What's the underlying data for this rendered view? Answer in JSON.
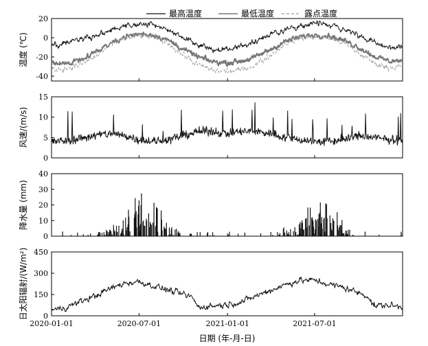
{
  "chart_data": [
    {
      "type": "line",
      "panel": "temperature",
      "ylabel": "温度 (℃)",
      "ylim": [
        -45,
        20
      ],
      "yticks": [
        20,
        0,
        -20,
        -40
      ],
      "legend_placement": "top-right",
      "series": [
        {
          "name": "最高温度",
          "color": "#111111",
          "style": "solid",
          "x": [
            "2020-01-01",
            "2020-02-01",
            "2020-03-01",
            "2020-04-01",
            "2020-05-01",
            "2020-06-01",
            "2020-07-01",
            "2020-08-01",
            "2020-09-01",
            "2020-10-01",
            "2020-11-01",
            "2020-12-01",
            "2021-01-01",
            "2021-02-01",
            "2021-03-01",
            "2021-04-01",
            "2021-05-01",
            "2021-06-01",
            "2021-07-01",
            "2021-08-01",
            "2021-09-01",
            "2021-10-01",
            "2021-11-01",
            "2021-12-01",
            "2021-12-31"
          ],
          "values": [
            -8,
            -6,
            -2,
            2,
            7,
            12,
            14,
            13,
            8,
            0,
            -7,
            -12,
            -12,
            -9,
            -3,
            4,
            8,
            13,
            15,
            13,
            9,
            2,
            -5,
            -10,
            -9
          ]
        },
        {
          "name": "最低温度",
          "color": "#777777",
          "style": "solid",
          "x": [
            "2020-01-01",
            "2020-02-01",
            "2020-03-01",
            "2020-04-01",
            "2020-05-01",
            "2020-06-01",
            "2020-07-01",
            "2020-08-01",
            "2020-09-01",
            "2020-10-01",
            "2020-11-01",
            "2020-12-01",
            "2021-01-01",
            "2021-02-01",
            "2021-03-01",
            "2021-04-01",
            "2021-05-01",
            "2021-06-01",
            "2021-07-01",
            "2021-08-01",
            "2021-09-01",
            "2021-10-01",
            "2021-11-01",
            "2021-12-01",
            "2021-12-31"
          ],
          "values": [
            -28,
            -27,
            -22,
            -15,
            -6,
            1,
            4,
            3,
            -3,
            -12,
            -20,
            -25,
            -26,
            -24,
            -20,
            -12,
            -4,
            1,
            3,
            2,
            -3,
            -10,
            -19,
            -24,
            -24
          ]
        },
        {
          "name": "露点温度",
          "color": "#999999",
          "style": "dashed",
          "x": [
            "2020-01-01",
            "2020-02-01",
            "2020-03-01",
            "2020-04-01",
            "2020-05-01",
            "2020-06-01",
            "2020-07-01",
            "2020-08-01",
            "2020-09-01",
            "2020-10-01",
            "2020-11-01",
            "2020-12-01",
            "2021-01-01",
            "2021-02-01",
            "2021-03-01",
            "2021-04-01",
            "2021-05-01",
            "2021-06-01",
            "2021-07-01",
            "2021-08-01",
            "2021-09-01",
            "2021-10-01",
            "2021-11-01",
            "2021-12-01",
            "2021-12-31"
          ],
          "values": [
            -33,
            -32,
            -28,
            -20,
            -8,
            -1,
            2,
            1,
            -6,
            -18,
            -28,
            -34,
            -35,
            -33,
            -28,
            -18,
            -6,
            -1,
            1,
            0,
            -6,
            -16,
            -26,
            -31,
            -30
          ]
        }
      ]
    },
    {
      "type": "line",
      "panel": "wind",
      "ylabel": "风速/(m/s)",
      "ylim": [
        0,
        15
      ],
      "yticks": [
        15,
        10,
        5,
        0
      ],
      "series": [
        {
          "color": "#111111",
          "x": [
            "2020-01-01",
            "2020-02-01",
            "2020-03-01",
            "2020-04-01",
            "2020-05-01",
            "2020-06-01",
            "2020-07-01",
            "2020-08-01",
            "2020-09-01",
            "2020-10-01",
            "2020-11-01",
            "2020-12-01",
            "2021-01-01",
            "2021-02-01",
            "2021-03-01",
            "2021-04-01",
            "2021-05-01",
            "2021-06-01",
            "2021-07-01",
            "2021-08-01",
            "2021-09-01",
            "2021-10-01",
            "2021-11-01",
            "2021-12-01",
            "2021-12-31"
          ],
          "values": [
            4.0,
            4.2,
            4.8,
            5.5,
            6.0,
            5.5,
            4.5,
            4.0,
            4.5,
            5.5,
            6.5,
            6.5,
            6.0,
            6.5,
            6.5,
            6.0,
            5.0,
            4.5,
            4.0,
            4.0,
            4.5,
            5.5,
            5.0,
            4.5,
            4.5
          ]
        }
      ]
    },
    {
      "type": "bar",
      "panel": "precipitation",
      "ylabel": "降水量 (mm)",
      "ylim": [
        0,
        40
      ],
      "yticks": [
        40,
        30,
        20,
        10,
        0
      ],
      "series": [
        {
          "color": "#111111",
          "x": [
            "2020-01-01",
            "2020-02-01",
            "2020-03-01",
            "2020-04-01",
            "2020-05-01",
            "2020-06-01",
            "2020-07-01",
            "2020-08-01",
            "2020-09-01",
            "2020-10-01",
            "2020-11-01",
            "2020-12-01",
            "2021-01-01",
            "2021-02-01",
            "2021-03-01",
            "2021-04-01",
            "2021-05-01",
            "2021-06-01",
            "2021-07-01",
            "2021-08-01",
            "2021-09-01",
            "2021-10-01",
            "2021-11-01",
            "2021-12-01",
            "2021-12-31"
          ],
          "values": [
            0.2,
            0.1,
            0.2,
            0.8,
            2,
            6,
            12,
            9,
            3,
            0.5,
            0.1,
            0.1,
            0.1,
            0.1,
            0.2,
            0.6,
            1.5,
            4,
            6,
            6,
            2,
            0.5,
            0.1,
            0.1,
            0.1
          ]
        }
      ]
    },
    {
      "type": "line",
      "panel": "radiation",
      "ylabel": "日太阳辐射/(W/m²)",
      "ylim": [
        0,
        450
      ],
      "yticks": [
        450,
        300,
        150,
        0
      ],
      "series": [
        {
          "color": "#111111",
          "x": [
            "2020-01-01",
            "2020-02-01",
            "2020-03-01",
            "2020-04-01",
            "2020-05-01",
            "2020-06-01",
            "2020-07-01",
            "2020-08-01",
            "2020-09-01",
            "2020-10-01",
            "2020-10-20",
            "2020-11-01",
            "2020-12-01",
            "2021-01-01",
            "2021-02-01",
            "2021-03-01",
            "2021-04-01",
            "2021-05-01",
            "2021-06-01",
            "2021-07-01",
            "2021-08-01",
            "2021-09-01",
            "2021-10-01",
            "2021-10-20",
            "2021-11-01",
            "2021-12-01",
            "2021-12-31"
          ],
          "values": [
            40,
            60,
            100,
            140,
            190,
            230,
            240,
            210,
            180,
            150,
            130,
            60,
            70,
            80,
            100,
            140,
            180,
            220,
            250,
            250,
            220,
            200,
            160,
            140,
            70,
            75,
            60
          ]
        }
      ]
    }
  ],
  "x_axis": {
    "label": "日期 (年-月-日)",
    "start": "2020-01-01",
    "end": "2021-12-31",
    "ticks": [
      "2020-01-01",
      "2020-07-01",
      "2021-01-01",
      "2021-07-01"
    ]
  }
}
